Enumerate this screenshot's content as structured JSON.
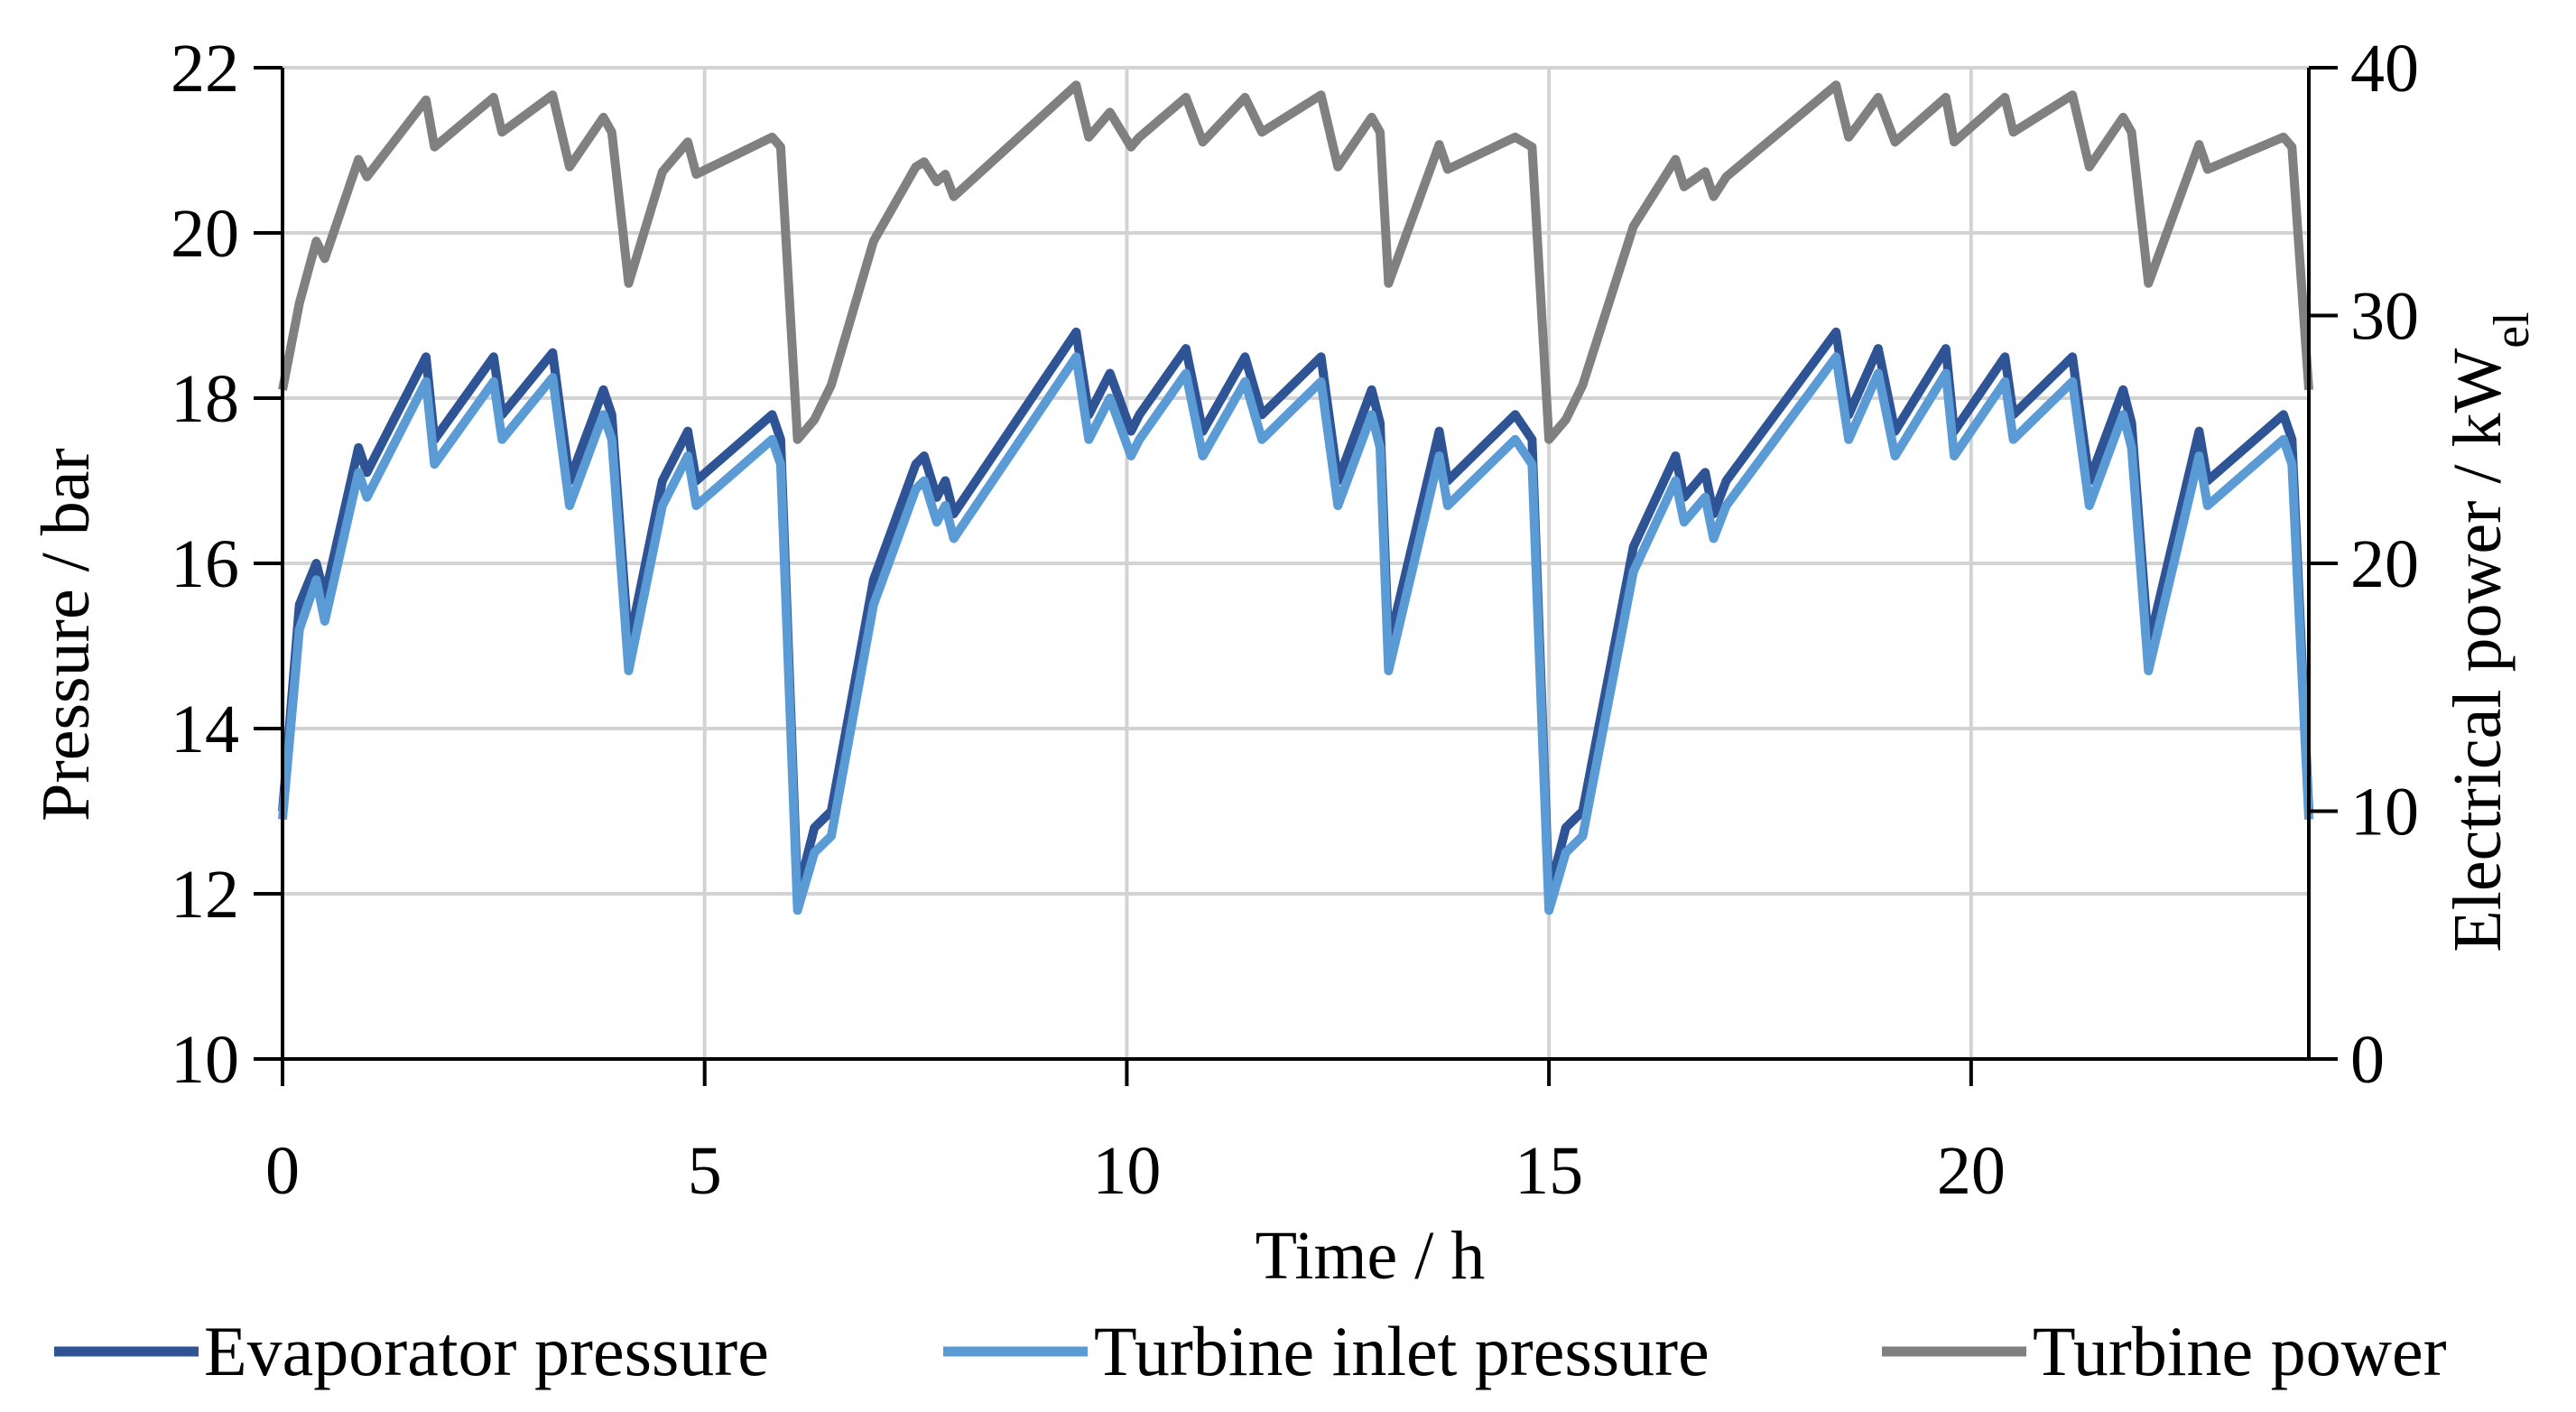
{
  "chart_data": {
    "type": "line",
    "title": "",
    "xlabel": "Time / h",
    "ylabel": "Pressure / bar",
    "y2label": {
      "main": "Electrical power / kW",
      "subscript": "el"
    },
    "xlim": [
      0,
      24
    ],
    "ylim": [
      10,
      22
    ],
    "y2lim": [
      0,
      40
    ],
    "xticks": [
      0,
      5,
      10,
      15,
      20
    ],
    "yticks": [
      10,
      12,
      14,
      16,
      18,
      20,
      22
    ],
    "y2ticks": [
      0,
      10,
      20,
      30,
      40
    ],
    "grid": true,
    "legend_position": "bottom",
    "series": [
      {
        "name": "Evaporator pressure",
        "axis": "left",
        "color": "#2e5496",
        "x": [
          0,
          0.2,
          0.4,
          0.5,
          0.9,
          1.0,
          1.7,
          1.8,
          2.5,
          2.6,
          3.2,
          3.4,
          3.8,
          3.9,
          4.1,
          4.5,
          4.8,
          4.9,
          5.8,
          5.9,
          6.1,
          6.3,
          6.5,
          7.0,
          7.5,
          7.6,
          7.75,
          7.85,
          7.95,
          9.4,
          9.55,
          9.8,
          10.05,
          10.15,
          10.7,
          10.9,
          11.4,
          11.6,
          12.3,
          12.5,
          12.9,
          13.0,
          13.1,
          13.7,
          13.8,
          14.6,
          14.8,
          15.0,
          15.2,
          15.4,
          16.0,
          16.5,
          16.6,
          16.85,
          16.95,
          17.1,
          18.4,
          18.55,
          18.9,
          19.1,
          19.7,
          19.8,
          20.4,
          20.5,
          21.2,
          21.4,
          21.8,
          21.9,
          22.1,
          22.7,
          22.8,
          23.7,
          23.8,
          24.0
        ],
        "values": [
          13.0,
          15.5,
          16.0,
          15.6,
          17.4,
          17.1,
          18.5,
          17.5,
          18.5,
          17.8,
          18.55,
          17.0,
          18.1,
          17.8,
          15.0,
          17.0,
          17.6,
          17.0,
          17.8,
          17.5,
          12.0,
          12.8,
          13.0,
          15.8,
          17.2,
          17.3,
          16.8,
          17.0,
          16.6,
          18.8,
          17.8,
          18.3,
          17.6,
          17.8,
          18.6,
          17.6,
          18.5,
          17.8,
          18.5,
          17.0,
          18.1,
          17.7,
          15.0,
          17.6,
          17.0,
          17.8,
          17.5,
          12.0,
          12.8,
          13.0,
          16.2,
          17.3,
          16.8,
          17.1,
          16.6,
          17.0,
          18.8,
          17.8,
          18.6,
          17.6,
          18.6,
          17.6,
          18.5,
          17.8,
          18.5,
          17.0,
          18.1,
          17.7,
          15.0,
          17.6,
          17.0,
          17.8,
          17.5,
          13.0
        ]
      },
      {
        "name": "Turbine inlet pressure",
        "axis": "left",
        "color": "#5b9bd5",
        "x": [
          0,
          0.2,
          0.4,
          0.5,
          0.9,
          1.0,
          1.7,
          1.8,
          2.5,
          2.6,
          3.2,
          3.4,
          3.8,
          3.9,
          4.1,
          4.5,
          4.8,
          4.9,
          5.8,
          5.9,
          6.1,
          6.3,
          6.5,
          7.0,
          7.5,
          7.6,
          7.75,
          7.85,
          7.95,
          9.4,
          9.55,
          9.8,
          10.05,
          10.15,
          10.7,
          10.9,
          11.4,
          11.6,
          12.3,
          12.5,
          12.9,
          13.0,
          13.1,
          13.7,
          13.8,
          14.6,
          14.8,
          15.0,
          15.2,
          15.4,
          16.0,
          16.5,
          16.6,
          16.85,
          16.95,
          17.1,
          18.4,
          18.55,
          18.9,
          19.1,
          19.7,
          19.8,
          20.4,
          20.5,
          21.2,
          21.4,
          21.8,
          21.9,
          22.1,
          22.7,
          22.8,
          23.7,
          23.8,
          24.0
        ],
        "values": [
          12.9,
          15.2,
          15.8,
          15.3,
          17.1,
          16.8,
          18.2,
          17.2,
          18.2,
          17.5,
          18.25,
          16.7,
          17.8,
          17.5,
          14.7,
          16.7,
          17.3,
          16.7,
          17.5,
          17.2,
          11.8,
          12.5,
          12.7,
          15.5,
          16.9,
          17.0,
          16.5,
          16.7,
          16.3,
          18.5,
          17.5,
          18.0,
          17.3,
          17.5,
          18.3,
          17.3,
          18.2,
          17.5,
          18.2,
          16.7,
          17.8,
          17.4,
          14.7,
          17.3,
          16.7,
          17.5,
          17.2,
          11.8,
          12.5,
          12.7,
          15.9,
          17.0,
          16.5,
          16.8,
          16.3,
          16.7,
          18.5,
          17.5,
          18.3,
          17.3,
          18.3,
          17.3,
          18.2,
          17.5,
          18.2,
          16.7,
          17.8,
          17.4,
          14.7,
          17.3,
          16.7,
          17.5,
          17.2,
          12.9
        ]
      },
      {
        "name": "Turbine power",
        "axis": "right",
        "color": "#808080",
        "x": [
          0,
          0.2,
          0.4,
          0.5,
          0.9,
          1.0,
          1.7,
          1.8,
          2.5,
          2.6,
          3.2,
          3.4,
          3.8,
          3.9,
          4.1,
          4.5,
          4.8,
          4.9,
          5.8,
          5.9,
          6.1,
          6.3,
          6.5,
          7.0,
          7.5,
          7.6,
          7.75,
          7.85,
          7.95,
          9.4,
          9.55,
          9.8,
          10.05,
          10.15,
          10.7,
          10.9,
          11.4,
          11.6,
          12.3,
          12.5,
          12.9,
          13.0,
          13.1,
          13.7,
          13.8,
          14.6,
          14.8,
          15.0,
          15.2,
          15.4,
          16.0,
          16.5,
          16.6,
          16.85,
          16.95,
          17.1,
          18.4,
          18.55,
          18.9,
          19.1,
          19.7,
          19.8,
          20.4,
          20.5,
          21.2,
          21.4,
          21.8,
          21.9,
          22.1,
          22.7,
          22.8,
          23.7,
          23.8,
          24.0
        ],
        "values": [
          27.0,
          30.5,
          33.0,
          32.3,
          36.3,
          35.6,
          38.7,
          36.8,
          38.8,
          37.4,
          38.9,
          36.0,
          38.0,
          37.4,
          31.3,
          35.8,
          37.0,
          35.7,
          37.2,
          36.8,
          25.0,
          25.8,
          27.2,
          33.0,
          36.0,
          36.2,
          35.4,
          35.7,
          34.8,
          39.3,
          37.2,
          38.2,
          36.8,
          37.2,
          38.8,
          37.0,
          38.8,
          37.4,
          38.9,
          36.0,
          38.0,
          37.4,
          31.3,
          36.9,
          35.9,
          37.2,
          36.8,
          25.0,
          25.8,
          27.2,
          33.6,
          36.3,
          35.2,
          35.8,
          34.8,
          35.6,
          39.3,
          37.2,
          38.8,
          37.0,
          38.8,
          37.0,
          38.8,
          37.4,
          38.9,
          36.0,
          38.0,
          37.4,
          31.3,
          36.9,
          35.9,
          37.2,
          36.8,
          27.0
        ]
      }
    ]
  }
}
